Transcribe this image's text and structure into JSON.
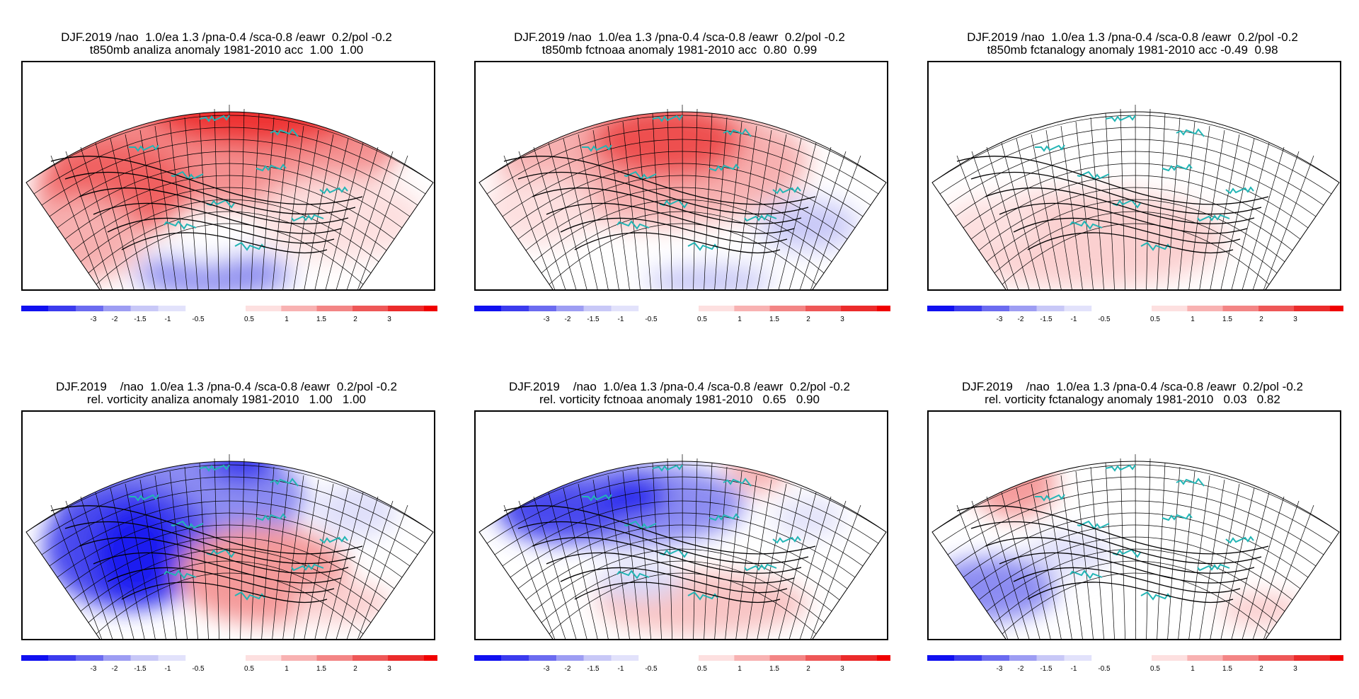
{
  "colorbar": {
    "labels": [
      "-3",
      "-2",
      "-1.5",
      "-1",
      "-0.5",
      "0.5",
      "1",
      "1.5",
      "2",
      "3"
    ],
    "colors": {
      "neg": [
        "#1010f0",
        "#3b3bee",
        "#6b6bf0",
        "#9d9df3",
        "#c8c8f7",
        "#e2e2fb"
      ],
      "pos": [
        "#fde0e0",
        "#f8b2b2",
        "#f38585",
        "#ee5757",
        "#eb2b2b",
        "#f00000"
      ]
    }
  },
  "panels": [
    {
      "title1": "DJF.2019 /nao  1.0/ea 1.3 /pna-0.4 /sca-0.8 /eawr  0.2/pol -0.2",
      "title2": "t850mb analiza anomaly 1981-2010 acc  1.00  1.00"
    },
    {
      "title1": "DJF.2019 /nao  1.0/ea 1.3 /pna-0.4 /sca-0.8 /eawr  0.2/pol -0.2",
      "title2": "t850mb fctnoaa anomaly 1981-2010 acc  0.80  0.99"
    },
    {
      "title1": "DJF.2019 /nao  1.0/ea 1.3 /pna-0.4 /sca-0.8 /eawr  0.2/pol -0.2",
      "title2": "t850mb fctanalogy anomaly 1981-2010 acc -0.49  0.98"
    },
    {
      "title1": "DJF.2019    /nao  1.0/ea 1.3 /pna-0.4 /sca-0.8 /eawr  0.2/pol -0.2",
      "title2": "rel. vorticity analiza anomaly 1981-2010   1.00   1.00"
    },
    {
      "title1": "DJF.2019    /nao  1.0/ea 1.3 /pna-0.4 /sca-0.8 /eawr  0.2/pol -0.2",
      "title2": "rel. vorticity fctnoaa anomaly 1981-2010   0.65   0.90"
    },
    {
      "title1": "DJF.2019    /nao  1.0/ea 1.3 /pna-0.4 /sca-0.8 /eawr  0.2/pol -0.2",
      "title2": "rel. vorticity fctanalogy anomaly 1981-2010   0.03   0.82"
    }
  ]
}
